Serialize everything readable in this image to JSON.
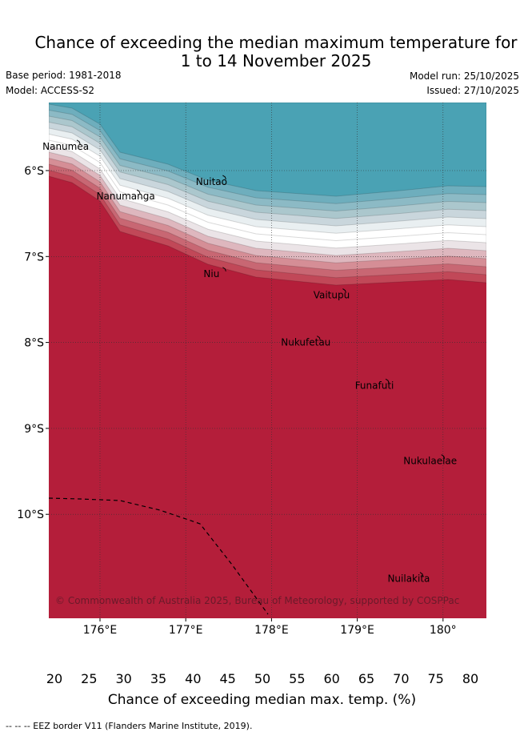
{
  "title": {
    "line1": "Chance of exceeding the median maximum temperature for",
    "line2": "1 to 14 November 2025"
  },
  "meta": {
    "base_period": "Base period: 1981-2018",
    "model": "Model: ACCESS-S2",
    "model_run": "Model run: 25/10/2025",
    "issued": "Issued: 27/10/2025"
  },
  "map": {
    "lon_ticks": [
      "176°E",
      "177°E",
      "178°E",
      "179°E",
      "180°"
    ],
    "lat_ticks": [
      "6°S",
      "7°S",
      "8°S",
      "9°S",
      "10°S"
    ],
    "places": [
      {
        "name": "Nanumea",
        "lon": 175.6,
        "lat": -5.72
      },
      {
        "name": "Nuitao",
        "lon": 177.3,
        "lat": -6.13
      },
      {
        "name": "Nanumanga",
        "lon": 176.3,
        "lat": -6.3
      },
      {
        "name": "Niu",
        "lon": 177.3,
        "lat": -7.2
      },
      {
        "name": "Vaitupu",
        "lon": 178.7,
        "lat": -7.45
      },
      {
        "name": "Nukufetau",
        "lon": 178.4,
        "lat": -8.0
      },
      {
        "name": "Funafuti",
        "lon": 179.2,
        "lat": -8.5
      },
      {
        "name": "Nukulaelae",
        "lon": 179.85,
        "lat": -9.38
      },
      {
        "name": "Nuilakita",
        "lon": 179.6,
        "lat": -10.75
      }
    ],
    "copyright": "© Commonwealth of Australia 2025, Bureau of Meteorology, supported by COSPPac"
  },
  "colorbar": {
    "ticks": [
      "20",
      "25",
      "30",
      "35",
      "40",
      "45",
      "50",
      "55",
      "60",
      "65",
      "70",
      "75",
      "80"
    ],
    "colors": [
      "#4aa2b4",
      "#6eaebd",
      "#8cbac5",
      "#abc7cd",
      "#c9d6dc",
      "#e9eff1",
      "#ffffff",
      "#ffffff",
      "#ebe4e7",
      "#deb7be",
      "#d58e96",
      "#c86773",
      "#c14858",
      "#b41e3a"
    ],
    "title": "Chance of exceeding median max. temp. (%)"
  },
  "footnote": "--  --  -- EEZ border V11 (Flanders Marine Institute, 2019)."
}
